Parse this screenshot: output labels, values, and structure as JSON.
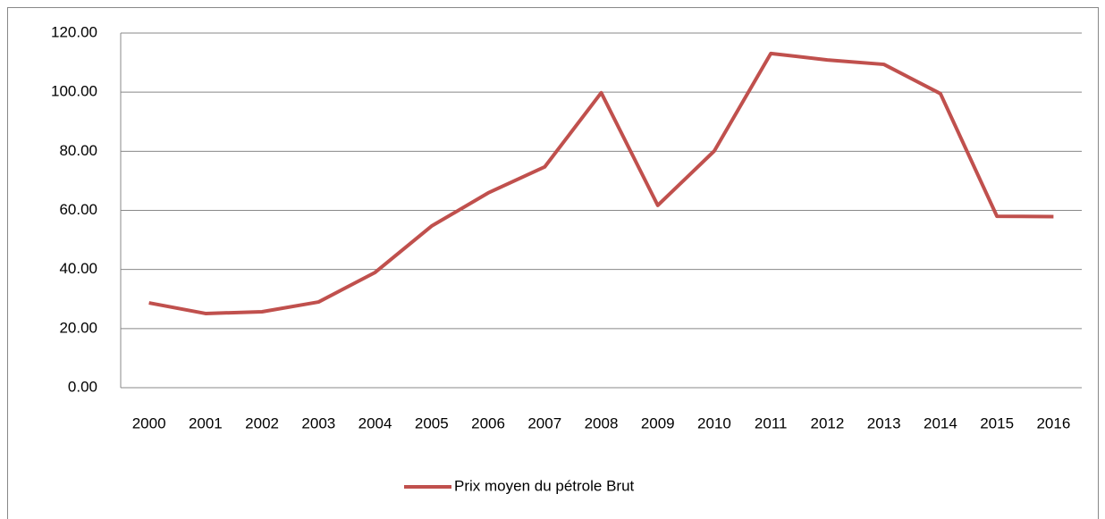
{
  "chart_data": {
    "type": "line",
    "categories": [
      "2000",
      "2001",
      "2002",
      "2003",
      "2004",
      "2005",
      "2006",
      "2007",
      "2008",
      "2009",
      "2010",
      "2011",
      "2012",
      "2013",
      "2014",
      "2015",
      "2016"
    ],
    "series": [
      {
        "name": "Prix moyen du pétrole Brut",
        "color": "#c0504d",
        "values": [
          28.7,
          25.1,
          25.7,
          29.0,
          39.0,
          54.7,
          65.9,
          74.7,
          99.8,
          61.7,
          80.1,
          113.1,
          110.9,
          109.4,
          99.5,
          58.0,
          57.9
        ]
      }
    ],
    "ylim": [
      0,
      120
    ],
    "yticks": [
      {
        "value": 0,
        "label": "0.00"
      },
      {
        "value": 20,
        "label": "20.00"
      },
      {
        "value": 40,
        "label": "40.00"
      },
      {
        "value": 60,
        "label": "60.00"
      },
      {
        "value": 80,
        "label": "80.00"
      },
      {
        "value": 100,
        "label": "100.00"
      },
      {
        "value": 120,
        "label": "120.00"
      }
    ],
    "grid": true,
    "legend": "bottom"
  }
}
